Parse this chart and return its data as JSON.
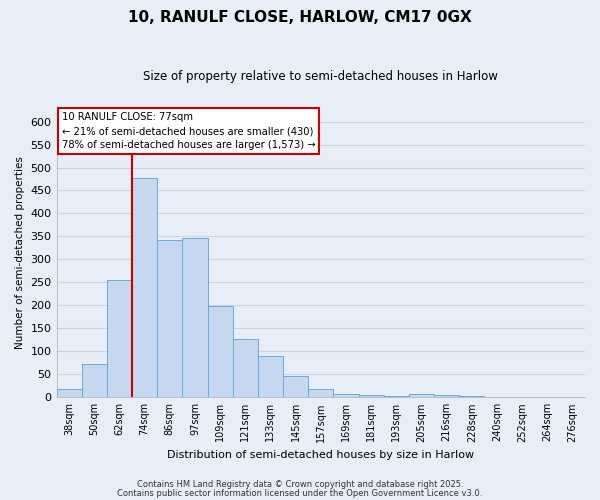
{
  "title": "10, RANULF CLOSE, HARLOW, CM17 0GX",
  "subtitle": "Size of property relative to semi-detached houses in Harlow",
  "xlabel": "Distribution of semi-detached houses by size in Harlow",
  "ylabel": "Number of semi-detached properties",
  "bar_labels": [
    "38sqm",
    "50sqm",
    "62sqm",
    "74sqm",
    "86sqm",
    "97sqm",
    "109sqm",
    "121sqm",
    "133sqm",
    "145sqm",
    "157sqm",
    "169sqm",
    "181sqm",
    "193sqm",
    "205sqm",
    "216sqm",
    "228sqm",
    "240sqm",
    "252sqm",
    "264sqm",
    "276sqm"
  ],
  "bar_values": [
    18,
    73,
    255,
    477,
    342,
    347,
    198,
    126,
    90,
    46,
    17,
    7,
    5,
    2,
    8,
    5,
    2,
    1,
    1,
    0,
    1
  ],
  "bar_color": "#c5d8f0",
  "bar_edge_color": "#6aaad4",
  "vline_x_index": 3,
  "vline_color": "#cc0000",
  "annotation_title": "10 RANULF CLOSE: 77sqm",
  "annotation_line2": "← 21% of semi-detached houses are smaller (430)",
  "annotation_line3": "78% of semi-detached houses are larger (1,573) →",
  "annotation_box_color": "white",
  "annotation_box_edge": "#cc0000",
  "ylim": [
    0,
    630
  ],
  "yticks": [
    0,
    50,
    100,
    150,
    200,
    250,
    300,
    350,
    400,
    450,
    500,
    550,
    600
  ],
  "footer1": "Contains HM Land Registry data © Crown copyright and database right 2025.",
  "footer2": "Contains public sector information licensed under the Open Government Licence v3.0.",
  "bg_color": "#e8eef8",
  "plot_bg_color": "#e8eef8",
  "grid_color": "#c8d4e8"
}
